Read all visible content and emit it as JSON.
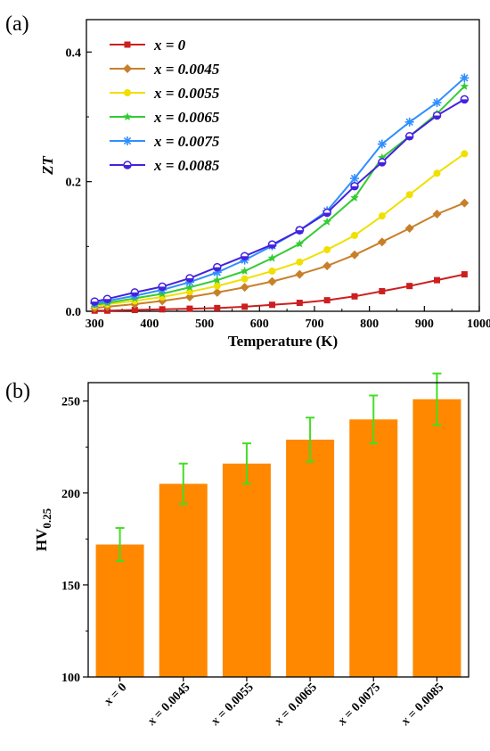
{
  "panels": {
    "a_label": "(a)",
    "b_label": "(b)"
  },
  "chart_data": [
    {
      "type": "line",
      "title": "",
      "xlabel": "Temperature (K)",
      "ylabel": "ZT",
      "xlim": [
        285,
        1000
      ],
      "ylim": [
        0,
        0.45
      ],
      "xticks": [
        300,
        400,
        500,
        600,
        700,
        800,
        900,
        1000
      ],
      "yticks": [
        0.0,
        0.2,
        0.4
      ],
      "ytick_labels": [
        "0.0",
        "0.2",
        "0.4"
      ],
      "grid": false,
      "legend_position": "top-left",
      "x": [
        300,
        323,
        373,
        423,
        473,
        523,
        573,
        623,
        673,
        723,
        773,
        823,
        873,
        923,
        973
      ],
      "series": [
        {
          "name": "x = 0",
          "color": "#cc1f1f",
          "marker": "square",
          "values": [
            0.001,
            0.001,
            0.002,
            0.003,
            0.004,
            0.005,
            0.007,
            0.01,
            0.013,
            0.017,
            0.023,
            0.031,
            0.039,
            0.048,
            0.057
          ]
        },
        {
          "name": "x = 0.0045",
          "color": "#c87f2a",
          "marker": "diamond",
          "values": [
            0.005,
            0.007,
            0.011,
            0.016,
            0.022,
            0.029,
            0.037,
            0.046,
            0.057,
            0.07,
            0.087,
            0.107,
            0.128,
            0.15,
            0.167
          ]
        },
        {
          "name": "x = 0.0055",
          "color": "#f0e000",
          "marker": "circle",
          "values": [
            0.008,
            0.011,
            0.016,
            0.022,
            0.03,
            0.039,
            0.05,
            0.062,
            0.076,
            0.095,
            0.117,
            0.147,
            0.18,
            0.213,
            0.243
          ]
        },
        {
          "name": "x = 0.0065",
          "color": "#33cc33",
          "marker": "star",
          "values": [
            0.01,
            0.013,
            0.02,
            0.027,
            0.037,
            0.048,
            0.062,
            0.082,
            0.104,
            0.138,
            0.175,
            0.237,
            0.27,
            0.305,
            0.347
          ]
        },
        {
          "name": "x = 0.0075",
          "color": "#2f8fff",
          "marker": "asterisk",
          "values": [
            0.012,
            0.016,
            0.024,
            0.033,
            0.045,
            0.06,
            0.079,
            0.101,
            0.125,
            0.155,
            0.205,
            0.258,
            0.292,
            0.322,
            0.36
          ]
        },
        {
          "name": "x = 0.0085",
          "color": "#4422dd",
          "marker": "half-circle",
          "values": [
            0.015,
            0.019,
            0.029,
            0.038,
            0.051,
            0.068,
            0.085,
            0.103,
            0.125,
            0.152,
            0.193,
            0.23,
            0.27,
            0.302,
            0.327
          ]
        }
      ]
    },
    {
      "type": "bar",
      "title": "",
      "xlabel": "",
      "ylabel": "HV0.25",
      "ylabel_main": "HV",
      "ylabel_sub": "0.25",
      "ylim": [
        100,
        260
      ],
      "yticks": [
        100,
        150,
        200,
        250
      ],
      "ytick_labels": [
        "100",
        "150",
        "200",
        "250"
      ],
      "grid": false,
      "bar_color": "#ff8800",
      "errorbar_color": "#44dd22",
      "categories": [
        "x = 0",
        "x = 0.0045",
        "x = 0.0055",
        "x = 0.0065",
        "x = 0.0075",
        "x = 0.0085"
      ],
      "values": [
        172,
        205,
        216,
        229,
        240,
        251
      ],
      "errors": [
        9,
        11,
        11,
        12,
        13,
        14
      ]
    }
  ]
}
